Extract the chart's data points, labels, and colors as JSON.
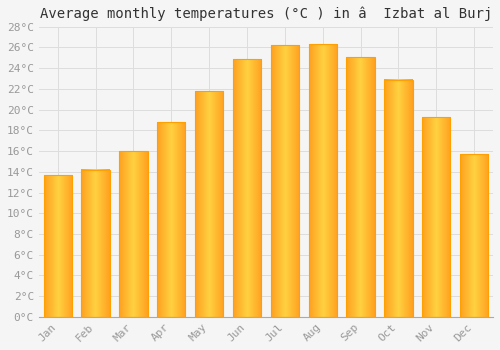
{
  "title": "Average monthly temperatures (°C ) in â  Izbat al Burj",
  "months": [
    "Jan",
    "Feb",
    "Mar",
    "Apr",
    "May",
    "Jun",
    "Jul",
    "Aug",
    "Sep",
    "Oct",
    "Nov",
    "Dec"
  ],
  "temperatures": [
    13.7,
    14.2,
    16.0,
    18.8,
    21.8,
    24.9,
    26.2,
    26.3,
    25.1,
    22.9,
    19.3,
    15.7
  ],
  "bar_color_center": "#FFD050",
  "bar_color_edge": "#FFA000",
  "ylim": [
    0,
    28
  ],
  "yticks": [
    0,
    2,
    4,
    6,
    8,
    10,
    12,
    14,
    16,
    18,
    20,
    22,
    24,
    26,
    28
  ],
  "ytick_labels": [
    "0°C",
    "2°C",
    "4°C",
    "6°C",
    "8°C",
    "10°C",
    "12°C",
    "14°C",
    "16°C",
    "18°C",
    "20°C",
    "22°C",
    "24°C",
    "26°C",
    "28°C"
  ],
  "background_color": "#F5F5F5",
  "plot_bg_color": "#F5F5F5",
  "grid_color": "#DDDDDD",
  "tick_color": "#999999",
  "title_fontsize": 10,
  "tick_fontsize": 8,
  "font_family": "monospace",
  "bar_width": 0.75
}
